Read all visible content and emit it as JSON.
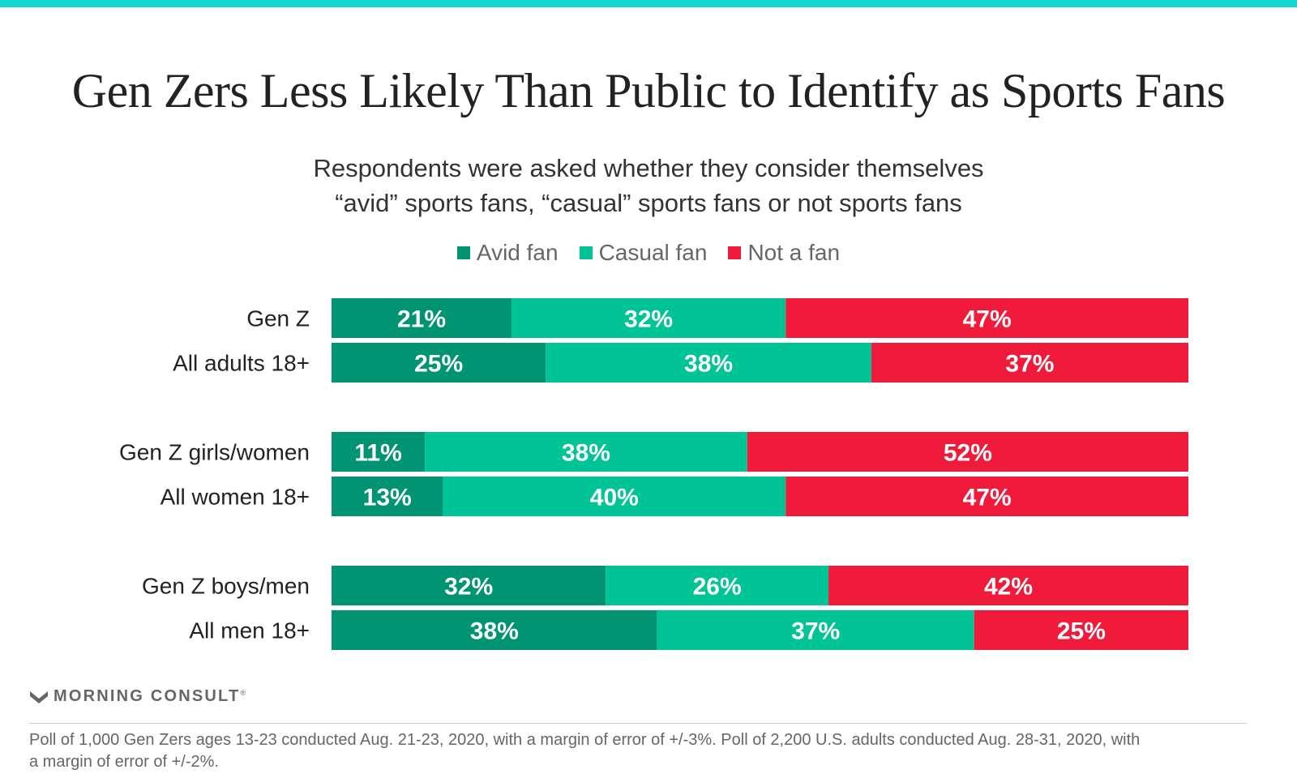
{
  "header": {
    "title": "Gen Zers Less Likely Than Public to Identify as Sports Fans",
    "subtitle_line1": "Respondents were asked whether they consider themselves",
    "subtitle_line2": "“avid” sports fans, “casual” sports fans or not sports fans"
  },
  "colors": {
    "accent_bar": "#13d6cc",
    "avid": "#009473",
    "casual": "#00c396",
    "not_fan": "#f01b3a"
  },
  "chart_data": {
    "type": "bar",
    "orientation": "horizontal",
    "stacked": true,
    "title": "Gen Zers Less Likely Than Public to Identify as Sports Fans",
    "subtitle": "Respondents were asked whether they consider themselves “avid” sports fans, “casual” sports fans or not sports fans",
    "categories": [
      "Gen Z",
      "All adults 18+",
      "Gen Z girls/women",
      "All women 18+",
      "Gen Z boys/men",
      "All men 18+"
    ],
    "groups": [
      [
        0,
        1
      ],
      [
        2,
        3
      ],
      [
        4,
        5
      ]
    ],
    "series": [
      {
        "name": "Avid fan",
        "color": "#009473",
        "values": [
          21,
          25,
          11,
          13,
          32,
          38
        ]
      },
      {
        "name": "Casual fan",
        "color": "#00c396",
        "values": [
          32,
          38,
          38,
          40,
          26,
          37
        ]
      },
      {
        "name": "Not a fan",
        "color": "#f01b3a",
        "values": [
          47,
          37,
          52,
          47,
          42,
          25
        ]
      }
    ],
    "value_suffix": "%",
    "legend_position": "top-center",
    "grid": false
  },
  "brand": {
    "name": "MORNING CONSULT",
    "mark": "®"
  },
  "footnote": {
    "line1": "Poll of 1,000 Gen Zers ages 13-23 conducted Aug. 21-23, 2020, with a margin of error of +/-3%. Poll of 2,200 U.S. adults conducted Aug. 28-31, 2020, with",
    "line2": "a margin of error of +/-2%."
  }
}
